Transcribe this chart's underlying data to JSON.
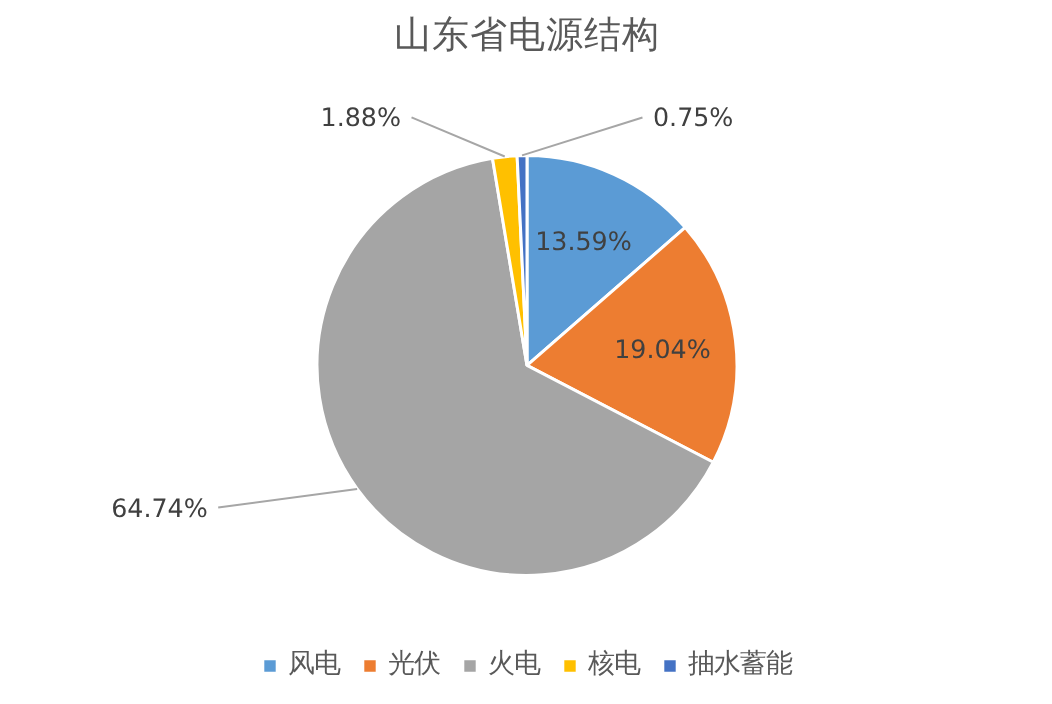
{
  "chart_data": {
    "type": "pie",
    "title": "山东省电源结构",
    "categories": [
      "风电",
      "光伏",
      "火电",
      "核电",
      "抽水蓄能"
    ],
    "values": [
      13.59,
      19.04,
      64.74,
      1.88,
      0.75
    ],
    "colors": [
      "#5b9bd5",
      "#ed7d31",
      "#a5a5a5",
      "#ffc000",
      "#4472c4"
    ],
    "value_labels": [
      "13.59%",
      "19.04%",
      "64.74%",
      "1.88%",
      "0.75%"
    ],
    "legend": "bottom"
  }
}
